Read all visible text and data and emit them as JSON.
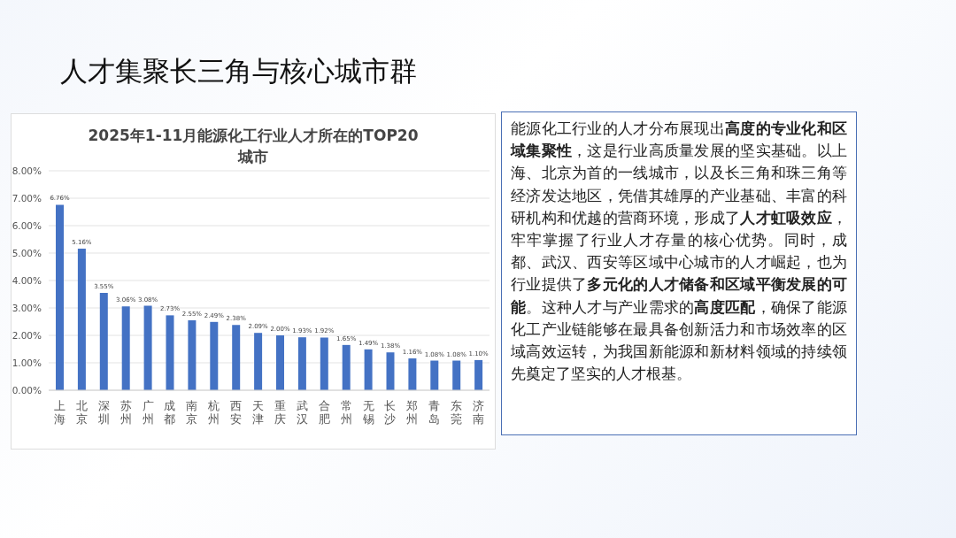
{
  "chart_data": [
    {
      "type": "other",
      "title": "人才集聚长三角与核心城市群"
    },
    {
      "type": "bar",
      "title": "2025年1-11月能源化工行业人才所在的TOP20城市",
      "categories": [
        "上海",
        "北京",
        "深圳",
        "苏州",
        "广州",
        "成都",
        "南京",
        "杭州",
        "西安",
        "天津",
        "重庆",
        "武汉",
        "合肥",
        "常州",
        "无锡",
        "长沙",
        "郑州",
        "青岛",
        "东莞",
        "济南"
      ],
      "values": [
        6.76,
        5.16,
        3.55,
        3.06,
        3.08,
        2.73,
        2.55,
        2.49,
        2.38,
        2.09,
        2.0,
        1.93,
        1.92,
        1.65,
        1.49,
        1.38,
        1.16,
        1.08,
        1.08,
        1.1
      ],
      "value_labels": [
        "6.76%",
        "5.16%",
        "3.55%",
        "3.06%",
        "3.08%",
        "2.73%",
        "2.55%",
        "2.49%",
        "2.38%",
        "2.09%",
        "2.00%",
        "1.93%",
        "1.92%",
        "1.65%",
        "1.49%",
        "1.38%",
        "1.16%",
        "1.08%",
        "1.08%",
        "1.10%"
      ],
      "color": "#4472c4",
      "ylim": [
        0,
        8
      ],
      "yticks": [
        {
          "value": 0,
          "label": "0.00%"
        },
        {
          "value": 1,
          "label": "1.00%"
        },
        {
          "value": 2,
          "label": "2.00%"
        },
        {
          "value": 3,
          "label": "3.00%"
        },
        {
          "value": 4,
          "label": "4.00%"
        },
        {
          "value": 5,
          "label": "5.00%"
        },
        {
          "value": 6,
          "label": "6.00%"
        },
        {
          "value": 7,
          "label": "7.00%"
        },
        {
          "value": 8,
          "label": "8.00%"
        }
      ],
      "grid": "y",
      "legend": false
    },
    {
      "type": "other",
      "annotations": [
        "能源化工行业的人才分布展现出",
        "高度的专业化和区域集聚性",
        "，这是行业高质量发展的坚实基础。以上海、北京为首的一线城市，以及长三角和珠三角等经济发达地区，凭借其雄厚的产业基础、丰富的科研机构和优越的营商环境，形成了",
        "人才虹吸效应",
        "，牢牢掌握了行业人才存量的核心优势。同时，成都、武汉、西安等区域中心城市的人才崛起，也为行业提供了",
        "多元化的人才储备和区域平衡发展的可能",
        "。这种人才与产业需求的",
        "高度匹配",
        "，确保了能源化工产业链能够在最具备创新活力和市场效率的区域高效运转，为我国新能源和新材料领域的持续领先奠定了坚实的人才根基。"
      ]
    }
  ]
}
